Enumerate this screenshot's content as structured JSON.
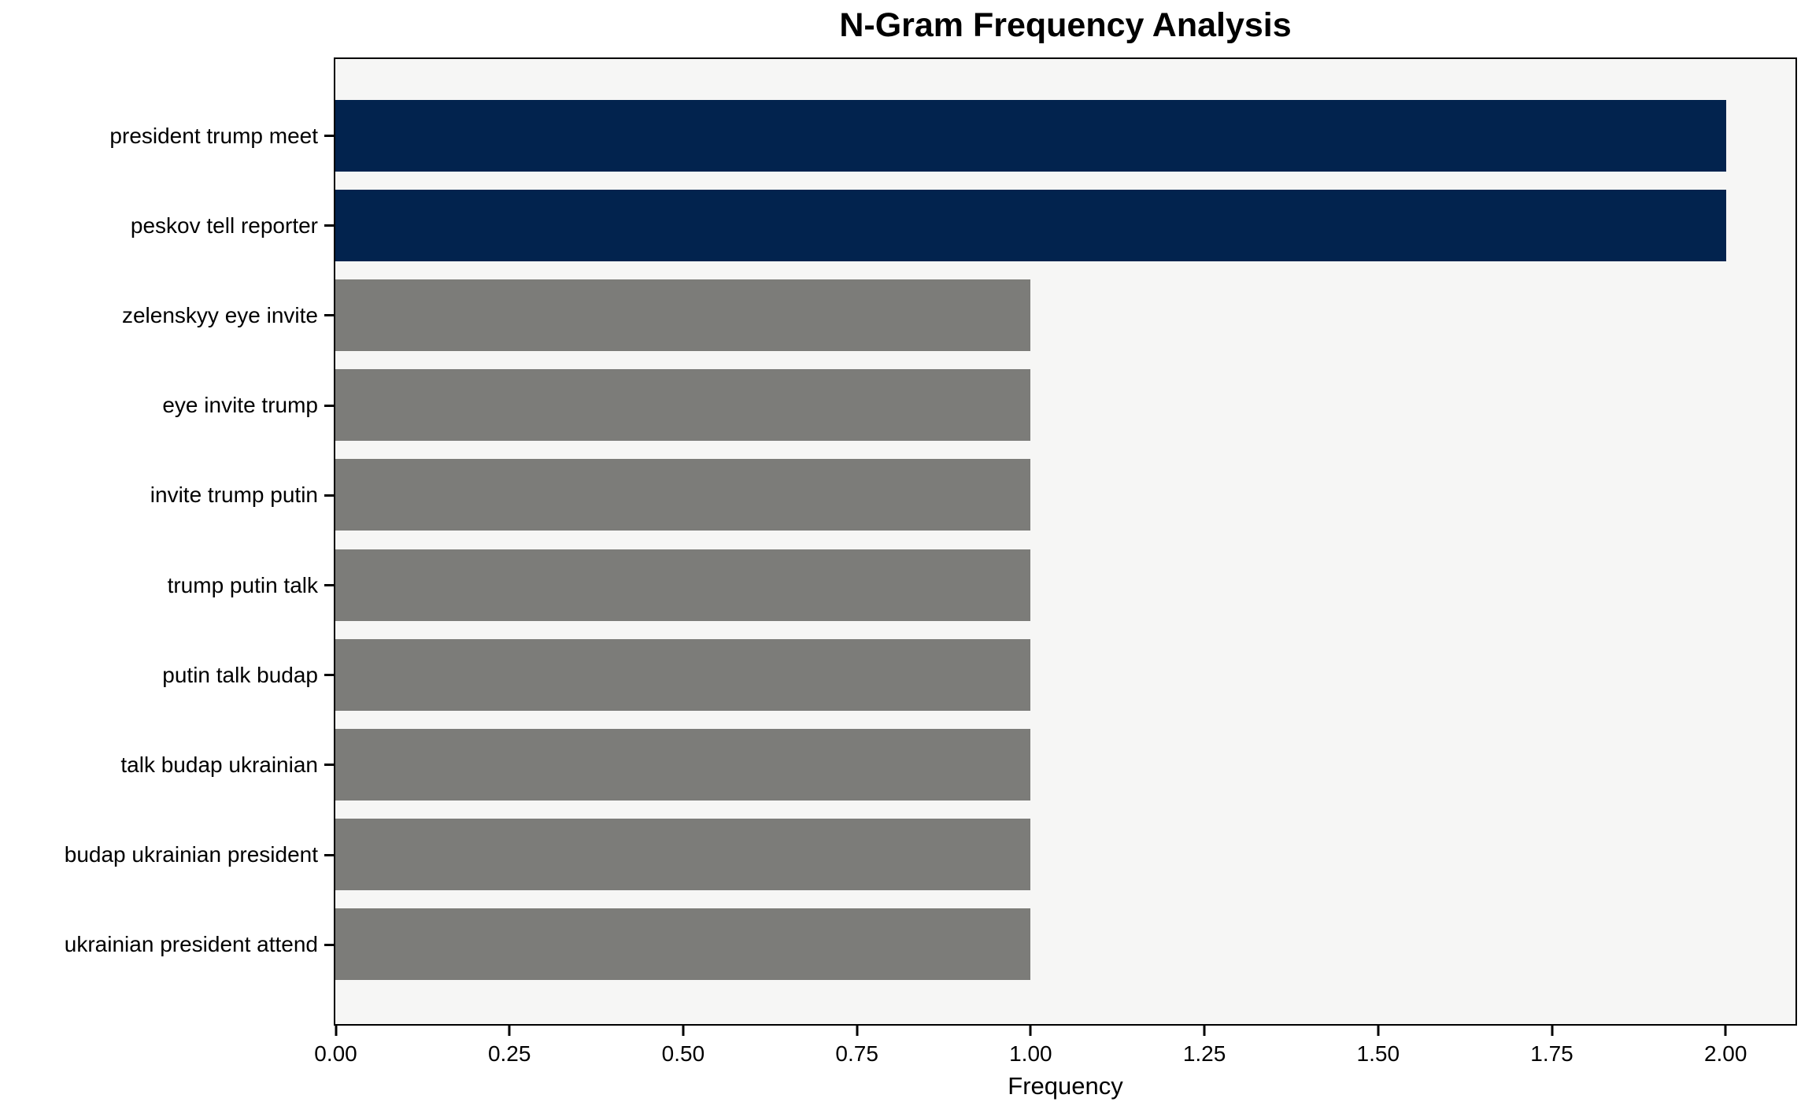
{
  "chart_data": {
    "type": "bar",
    "orientation": "horizontal",
    "title": "N-Gram Frequency Analysis",
    "xlabel": "Frequency",
    "ylabel": "",
    "categories": [
      "president trump meet",
      "peskov tell reporter",
      "zelenskyy eye invite",
      "eye invite trump",
      "invite trump putin",
      "trump putin talk",
      "putin talk budap",
      "talk budap ukrainian",
      "budap ukrainian president",
      "ukrainian president attend"
    ],
    "values": [
      2,
      2,
      1,
      1,
      1,
      1,
      1,
      1,
      1,
      1
    ],
    "bar_colors": [
      "#02234e",
      "#02234e",
      "#7c7c79",
      "#7c7c79",
      "#7c7c79",
      "#7c7c79",
      "#7c7c79",
      "#7c7c79",
      "#7c7c79",
      "#7c7c79"
    ],
    "xlim": [
      0,
      2.1
    ],
    "x_ticks": [
      0.0,
      0.25,
      0.5,
      0.75,
      1.0,
      1.25,
      1.5,
      1.75,
      2.0
    ],
    "x_tick_labels": [
      "0.00",
      "0.25",
      "0.50",
      "0.75",
      "1.00",
      "1.25",
      "1.50",
      "1.75",
      "2.00"
    ],
    "grid": false,
    "legend": false,
    "colors": {
      "highlight_bar": "#02234e",
      "default_bar": "#7c7c79",
      "plot_background": "#f6f6f5",
      "figure_background": "#ffffff",
      "spine": "#000000",
      "text": "#000000"
    }
  }
}
